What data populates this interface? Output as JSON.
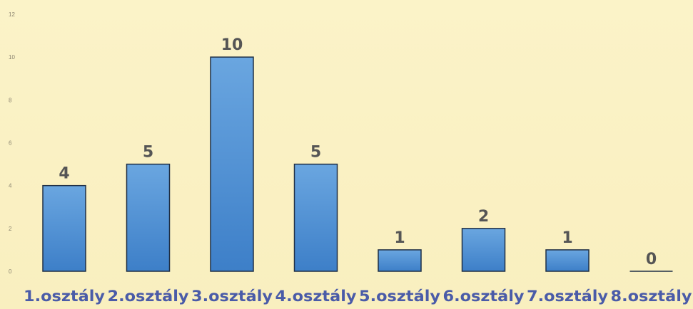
{
  "chart_data": {
    "type": "bar",
    "categories": [
      "1.osztály",
      "2.osztály",
      "3.osztály",
      "4.osztály",
      "5.osztály",
      "6.osztály",
      "7.osztály",
      "8.osztály"
    ],
    "values": [
      4,
      5,
      10,
      5,
      1,
      2,
      1,
      0
    ],
    "yticks": [
      0,
      2,
      4,
      6,
      8,
      10,
      12
    ],
    "ylim": [
      0,
      12
    ],
    "title": "",
    "xlabel": "",
    "ylabel": "",
    "grid": false,
    "legend": "none",
    "data_labels": true
  },
  "colors": {
    "background": "#fbf2c4",
    "bar_fill_top": "#6aa6e0",
    "bar_fill_bottom": "#3d7fc8",
    "bar_stroke": "#1f2f45",
    "data_label": "#555555",
    "category_label": "#4a5ba8",
    "tick_label": "#8a8470"
  }
}
